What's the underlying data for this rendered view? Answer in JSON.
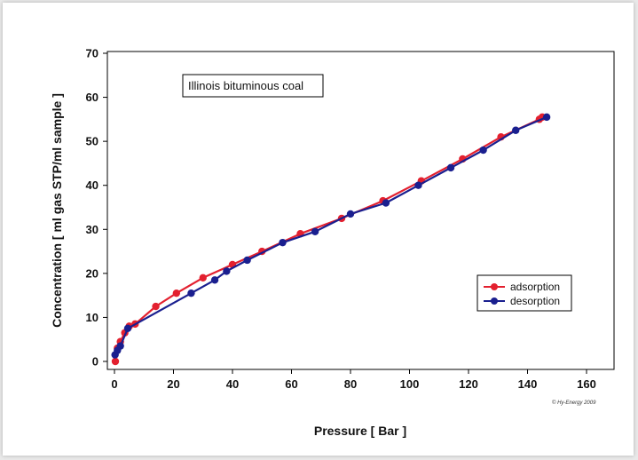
{
  "chart_data": {
    "type": "line",
    "title": "",
    "annotation": "Illinois bituminous coal",
    "xlabel": "Pressure [ Bar ]",
    "ylabel": "Concentration [ ml gas STP/ml sample ]",
    "xlim": [
      0,
      160
    ],
    "ylim": [
      0,
      70
    ],
    "xticks": [
      0,
      20,
      40,
      60,
      80,
      100,
      120,
      140,
      160
    ],
    "yticks": [
      0,
      10,
      20,
      30,
      40,
      50,
      60,
      70
    ],
    "grid": false,
    "legend_position": "right",
    "copyright": "© Hy-Energy 2009",
    "series": [
      {
        "name": "adsorption",
        "color": "#e3202f",
        "x": [
          0.3,
          1,
          2,
          3.5,
          5,
          7,
          14,
          21,
          30,
          40,
          50,
          63,
          77,
          91,
          104,
          118,
          131,
          144,
          145
        ],
        "y": [
          0,
          3,
          4.5,
          6.5,
          8,
          8.5,
          12.5,
          15.5,
          19,
          22,
          25,
          29,
          32.5,
          36.5,
          41,
          46,
          51,
          55,
          55.5
        ]
      },
      {
        "name": "desorption",
        "color": "#1a1f8f",
        "x": [
          0.2,
          1,
          2,
          4.5,
          26,
          34,
          38,
          45,
          57,
          68,
          80,
          92,
          103,
          114,
          125,
          136,
          146.5
        ],
        "y": [
          1.5,
          2.5,
          3.5,
          7.5,
          15.5,
          18.5,
          20.5,
          23,
          27,
          29.5,
          33.5,
          36,
          40,
          44,
          48,
          52.5,
          55.5
        ]
      }
    ]
  }
}
